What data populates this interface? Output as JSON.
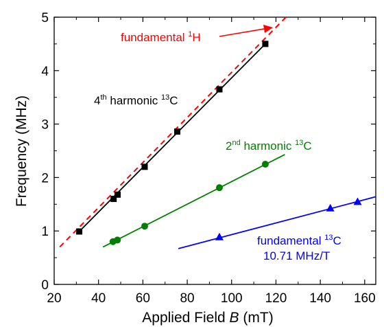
{
  "chart_data": {
    "type": "line",
    "xlabel_main": "Applied Field ",
    "xlabel_var": "B",
    "xlabel_unit": " (mT)",
    "ylabel": "Frequency (MHz)",
    "xlim": [
      20,
      165
    ],
    "ylim": [
      0,
      5
    ],
    "xticks": [
      "20",
      "40",
      "60",
      "80",
      "100",
      "120",
      "140",
      "160"
    ],
    "yticks": [
      "0",
      "1",
      "2",
      "3",
      "4",
      "5"
    ],
    "series": [
      {
        "key": "h4",
        "marker": "square",
        "color": "#000000",
        "points": [
          [
            31.3,
            0.99
          ],
          [
            46.8,
            1.6
          ],
          [
            48.6,
            1.68
          ],
          [
            60.8,
            2.2
          ],
          [
            75.5,
            2.86
          ],
          [
            94.5,
            3.65
          ],
          [
            115.2,
            4.5
          ]
        ],
        "fit": [
          [
            31.3,
            0.99
          ],
          [
            115.2,
            4.5
          ]
        ]
      },
      {
        "key": "h2",
        "marker": "circle",
        "color": "#008000",
        "points": [
          [
            46.5,
            0.8
          ],
          [
            48.5,
            0.83
          ],
          [
            60.8,
            1.09
          ],
          [
            94.5,
            1.81
          ],
          [
            115.2,
            2.25
          ]
        ],
        "fit": [
          [
            42,
            0.7
          ],
          [
            124,
            2.43
          ]
        ]
      },
      {
        "key": "f13",
        "marker": "triangle",
        "color": "#0000ff",
        "points": [
          [
            94.5,
            0.89
          ],
          [
            144.5,
            1.43
          ],
          [
            156.8,
            1.55
          ]
        ],
        "fit": [
          [
            76,
            0.67
          ],
          [
            165,
            1.64
          ]
        ]
      }
    ],
    "dashed_line": {
      "color": "#ff0000",
      "points": [
        [
          22.5,
          0.7
        ],
        [
          124.5,
          5.0
        ]
      ]
    },
    "annotations": {
      "fund_1h_text": "fundamental ",
      "fund_1h_sup": "1",
      "fund_1h_tail": "H",
      "h4_pre": "4",
      "h4_sup": "th",
      "h4_mid": " harmonic ",
      "h4_iso": "13",
      "h4_tail": "C",
      "h2_pre": "2",
      "h2_sup": "nd",
      "h2_mid": " harmonic ",
      "h2_iso": "13",
      "h2_tail": "C",
      "f13_pre": "fundamental ",
      "f13_iso": "13",
      "f13_tail": "C",
      "f13_slope": "10.71 MHz/T"
    },
    "colors": {
      "red": "#ff0000",
      "green": "#008000",
      "blue": "#0000ff",
      "black": "#000000"
    }
  }
}
